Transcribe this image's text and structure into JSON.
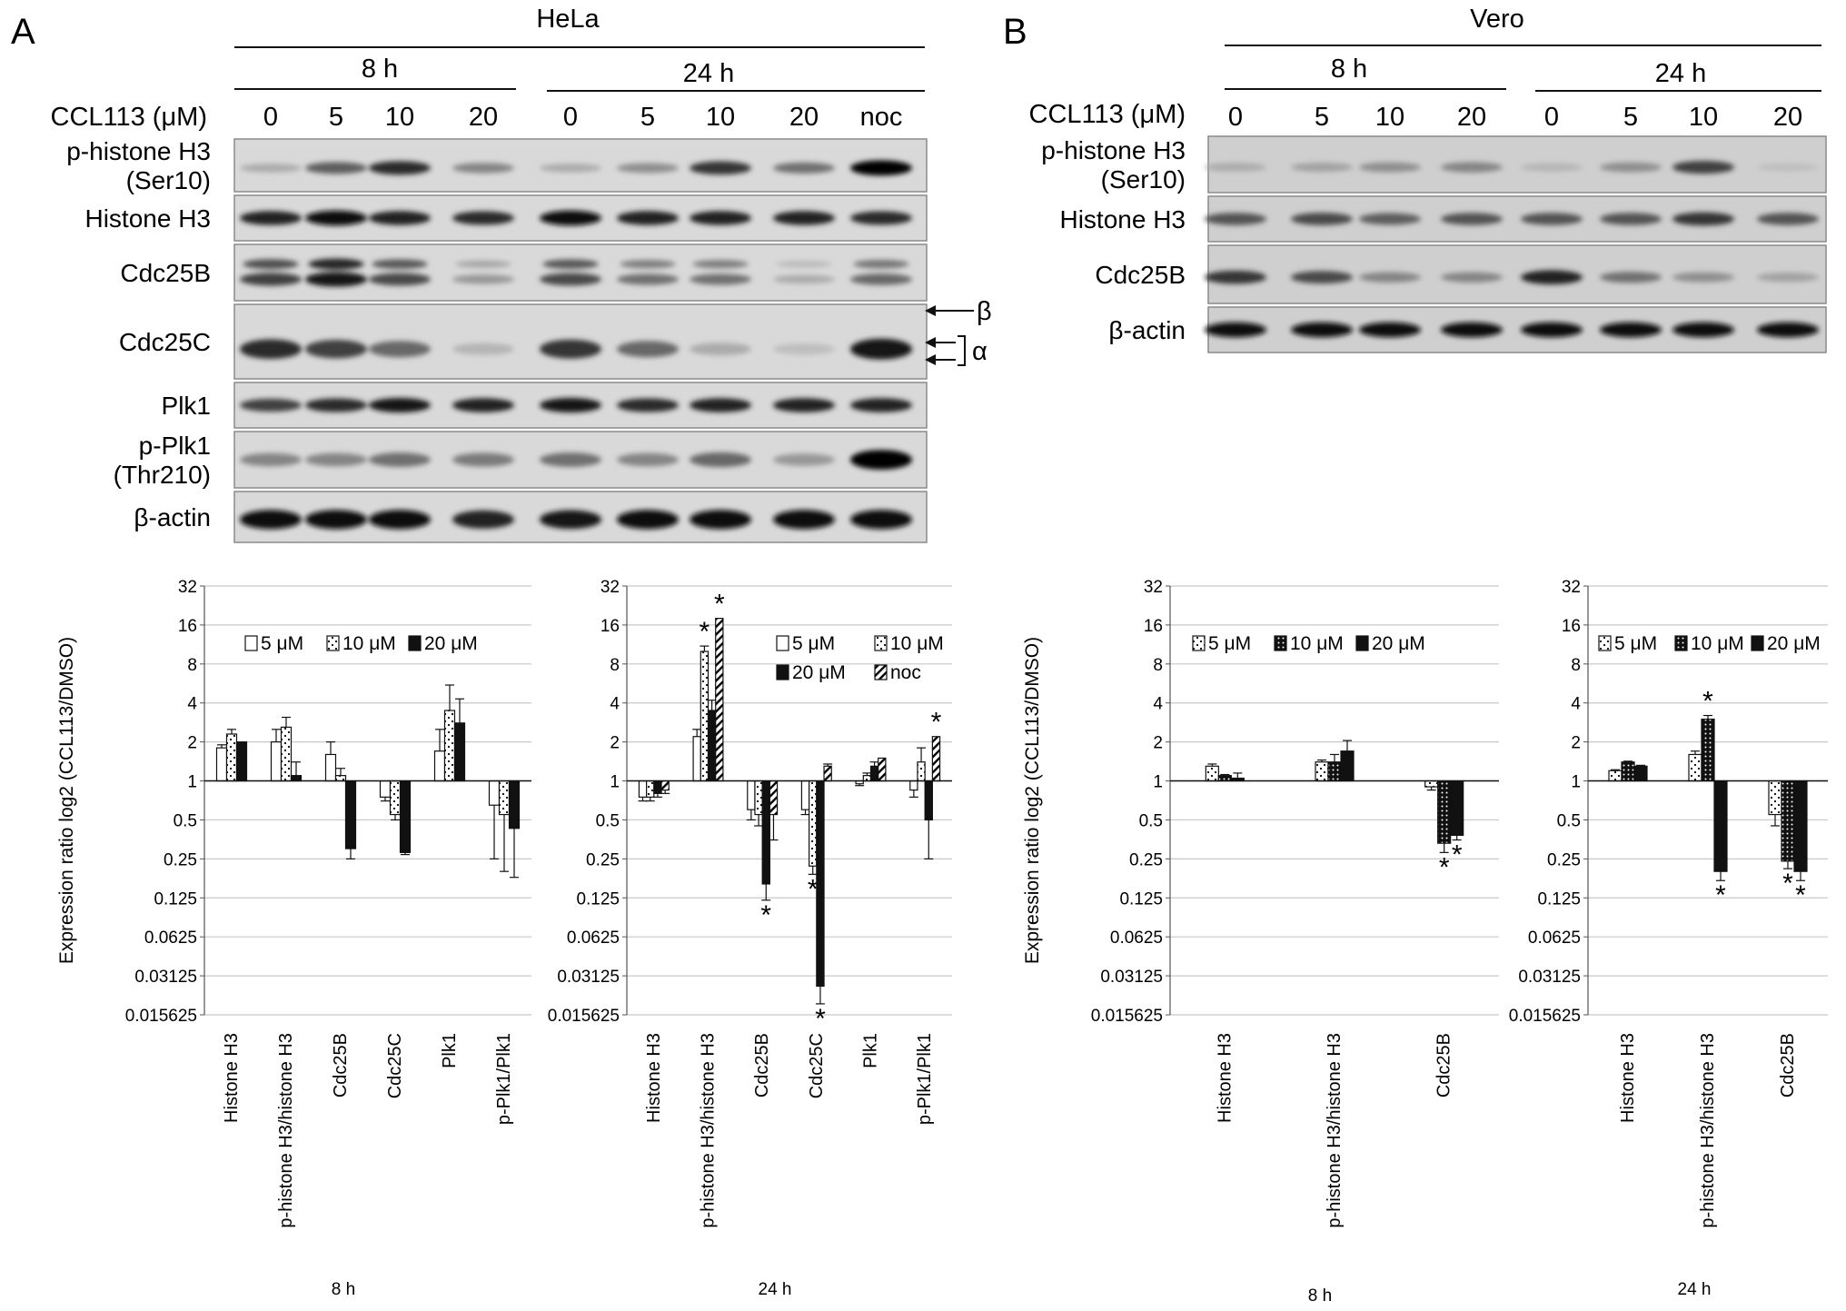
{
  "figure": {
    "panel_a": "A",
    "panel_b": "B",
    "cell_line_a": "HeLa",
    "cell_line_b": "Vero",
    "time_8h": "8 h",
    "time_24h": "24 h",
    "treatment_label": "CCL113 (μM)",
    "doses_8h": [
      "0",
      "5",
      "10",
      "20"
    ],
    "doses_24h_a": [
      "0",
      "5",
      "10",
      "20",
      "noc"
    ],
    "doses_24h_b": [
      "0",
      "5",
      "10",
      "20"
    ],
    "blot_labels_a": [
      "p-histone H3\n(Ser10)",
      "Histone H3",
      "Cdc25B",
      "Cdc25C",
      "Plk1",
      "p-Plk1\n(Thr210)",
      "β-actin"
    ],
    "blot_labels_b": [
      "p-histone H3\n(Ser10)",
      "Histone H3",
      "Cdc25B",
      "β-actin"
    ],
    "beta_marker": "β",
    "alpha_marker": "α"
  },
  "chart_data": [
    {
      "type": "bar",
      "panel": "A",
      "xlabel": "8 h",
      "ylabel": "Expression ratio log2 (CCL113/DMSO)",
      "yscale": "log2",
      "ylim": [
        0.015625,
        32
      ],
      "yticks": [
        "32",
        "16",
        "8",
        "4",
        "2",
        "1",
        "0.5",
        "0.25",
        "0.125",
        "0.0625",
        "0.03125",
        "0.015625"
      ],
      "categories": [
        "Histone H3",
        "p-histone H3/histone H3",
        "Cdc25B",
        "Cdc25C",
        "Plk1",
        "p-Plk1/Plk1"
      ],
      "series": [
        {
          "name": "5 μM",
          "pattern": "open",
          "values": [
            1.8,
            2.0,
            1.6,
            0.75,
            1.7,
            0.65
          ],
          "errors": [
            0.1,
            0.5,
            0.4,
            0.05,
            0.8,
            0.4
          ]
        },
        {
          "name": "10 μM",
          "pattern": "dotted",
          "values": [
            2.3,
            2.6,
            1.1,
            0.55,
            3.5,
            0.55
          ],
          "errors": [
            0.2,
            0.5,
            0.15,
            0.05,
            2.0,
            0.35
          ]
        },
        {
          "name": "20 μM",
          "pattern": "solid",
          "values": [
            2.0,
            1.1,
            0.3,
            0.28,
            2.8,
            0.43
          ],
          "errors": [
            0,
            0.3,
            0.05,
            0.01,
            1.5,
            0.25
          ]
        }
      ]
    },
    {
      "type": "bar",
      "panel": "A",
      "xlabel": "24 h",
      "ylabel": "",
      "yscale": "log2",
      "ylim": [
        0.015625,
        32
      ],
      "yticks": [
        "32",
        "16",
        "8",
        "4",
        "2",
        "1",
        "0.5",
        "0.25",
        "0.125",
        "0.0625",
        "0.03125",
        "0.015625"
      ],
      "categories": [
        "Histone H3",
        "p-histone H3/histone H3",
        "Cdc25B",
        "Cdc25C",
        "Plk1",
        "p-Plk1/Plk1"
      ],
      "series": [
        {
          "name": "5 μM",
          "pattern": "open",
          "values": [
            0.75,
            2.2,
            0.6,
            0.6,
            0.95,
            0.85
          ],
          "errors": [
            0.05,
            0.3,
            0.1,
            0.05,
            0.03,
            0.1
          ]
        },
        {
          "name": "10 μM",
          "pattern": "dotted",
          "values": [
            0.75,
            10.0,
            0.55,
            0.22,
            1.1,
            1.4
          ],
          "errors": [
            0.05,
            1.0,
            0.1,
            0.03,
            0.05,
            0.4
          ]
        },
        {
          "name": "20 μM",
          "pattern": "solid",
          "values": [
            0.8,
            3.5,
            0.16,
            0.026,
            1.3,
            0.5
          ],
          "errors": [
            0.05,
            0.7,
            0.04,
            0.007,
            0.1,
            0.25
          ]
        },
        {
          "name": "noc",
          "pattern": "hatched",
          "values": [
            0.85,
            18.0,
            0.55,
            1.3,
            1.5,
            2.2
          ],
          "errors": [
            0.05,
            0,
            0.2,
            0.05,
            0,
            0
          ]
        }
      ],
      "significant": [
        [
          1,
          1
        ],
        [
          1,
          3
        ],
        [
          2,
          2
        ],
        [
          3,
          1
        ],
        [
          3,
          2
        ],
        [
          5,
          3
        ]
      ]
    },
    {
      "type": "bar",
      "panel": "B",
      "xlabel": "8 h",
      "ylabel": "Expression ratio log2 (CCL113/DMSO)",
      "yscale": "log2",
      "ylim": [
        0.015625,
        32
      ],
      "yticks": [
        "32",
        "16",
        "8",
        "4",
        "2",
        "1",
        "0.5",
        "0.25",
        "0.125",
        "0.0625",
        "0.03125",
        "0.015625"
      ],
      "categories": [
        "Histone H3",
        "p-histone H3/histone H3",
        "Cdc25B"
      ],
      "series": [
        {
          "name": "5 μM",
          "pattern": "dotted",
          "values": [
            1.3,
            1.4,
            0.9
          ],
          "errors": [
            0.05,
            0.05,
            0.05
          ]
        },
        {
          "name": "10 μM",
          "pattern": "dense",
          "values": [
            1.1,
            1.4,
            0.33
          ],
          "errors": [
            0.02,
            0.2,
            0.05
          ]
        },
        {
          "name": "20 μM",
          "pattern": "solid",
          "values": [
            1.05,
            1.7,
            0.38
          ],
          "errors": [
            0.1,
            0.35,
            0.03
          ]
        }
      ],
      "significant": [
        [
          2,
          1
        ],
        [
          2,
          2
        ]
      ]
    },
    {
      "type": "bar",
      "panel": "B",
      "xlabel": "24 h",
      "ylabel": "",
      "yscale": "log2",
      "ylim": [
        0.015625,
        32
      ],
      "yticks": [
        "32",
        "16",
        "8",
        "4",
        "2",
        "1",
        "0.5",
        "0.25",
        "0.125",
        "0.0625",
        "0.03125",
        "0.015625"
      ],
      "categories": [
        "Histone H3",
        "p-histone H3/histone H3",
        "Cdc25B"
      ],
      "series": [
        {
          "name": "5 μM",
          "pattern": "dotted",
          "values": [
            1.2,
            1.6,
            0.55
          ],
          "errors": [
            0.02,
            0.1,
            0.1
          ]
        },
        {
          "name": "10 μM",
          "pattern": "dense",
          "values": [
            1.4,
            3.0,
            0.24
          ],
          "errors": [
            0.02,
            0.2,
            0.03
          ]
        },
        {
          "name": "20 μM",
          "pattern": "solid",
          "values": [
            1.3,
            0.2,
            0.2
          ],
          "errors": [
            0.02,
            0.03,
            0.03
          ]
        }
      ],
      "significant": [
        [
          1,
          1
        ],
        [
          1,
          2
        ],
        [
          2,
          1
        ],
        [
          2,
          2
        ]
      ]
    }
  ]
}
